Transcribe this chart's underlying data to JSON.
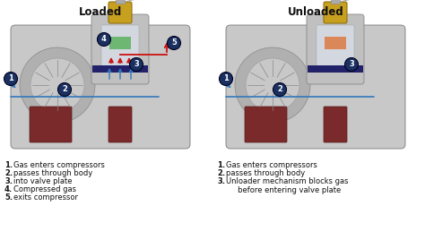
{
  "title_left": "Loaded",
  "title_right": "Unloaded",
  "title_fontsize": 8.5,
  "title_fontweight": "bold",
  "bg_color": "#ffffff",
  "left_legend": [
    [
      "1.",
      "Gas enters compressors"
    ],
    [
      "2.",
      "passes through body"
    ],
    [
      "3.",
      "into valve plate"
    ],
    [
      "4.",
      "Compressed gas"
    ],
    [
      "5.",
      "exits compressor"
    ]
  ],
  "right_legend": [
    [
      "1.",
      "Gas enters compressors"
    ],
    [
      "2.",
      "passes through body"
    ],
    [
      "3.",
      "Unloader mechanism blocks gas\n     before entering valve plate"
    ]
  ],
  "legend_fontsize": 6.0,
  "label_circle_color": "#1a3060",
  "label_text_color": "#ffffff",
  "arrow_blue": "#3377bb",
  "arrow_red": "#cc1111",
  "gold_color": "#c8a020",
  "green_color": "#44aa44",
  "body_dark": "#888888",
  "body_mid": "#aaaaaa",
  "body_light": "#cccccc",
  "body_lighter": "#dddddd",
  "rotor_color": "#7a2a2a",
  "band_color": "#22226a",
  "valve_color": "#bbbbbb",
  "inner_color": "#c0c4cc"
}
